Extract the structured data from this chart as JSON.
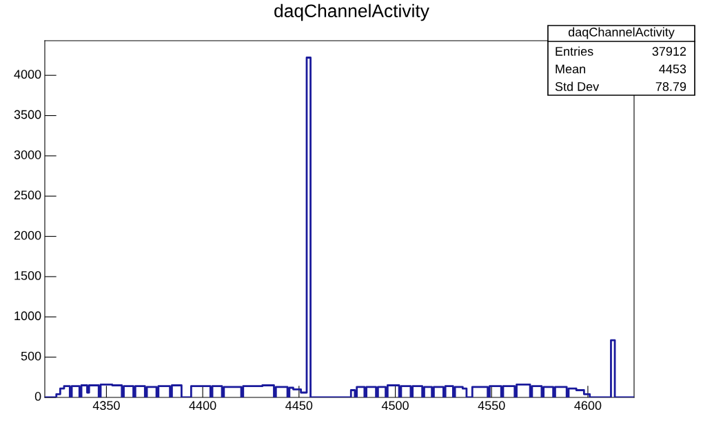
{
  "chart_data": {
    "type": "histogram",
    "title": "daqChannelActivity",
    "bins": [
      4318,
      4324,
      4326,
      4328,
      4331,
      4332,
      4336,
      4337,
      4340,
      4341,
      4346,
      4347,
      4353,
      4358,
      4359,
      4364,
      4365,
      4370,
      4371,
      4376,
      4377,
      4383,
      4384,
      4389,
      4394,
      4404,
      4405,
      4410,
      4411,
      4420,
      4421,
      4428,
      4431,
      4437,
      4438,
      4444,
      4445,
      4447,
      4451,
      4454,
      4456,
      4477,
      4479,
      4480,
      4484,
      4485,
      4490,
      4491,
      4495,
      4496,
      4502,
      4503,
      4508,
      4509,
      4514,
      4515,
      4519,
      4520,
      4525,
      4526,
      4530,
      4531,
      4535,
      4537,
      4540,
      4548,
      4549,
      4555,
      4556,
      4562,
      4563,
      4570,
      4571,
      4576,
      4577,
      4582,
      4583,
      4589,
      4590,
      4594,
      4598,
      4601,
      4612,
      4614,
      4624
    ],
    "values": [
      0,
      40,
      110,
      140,
      0,
      140,
      0,
      150,
      60,
      150,
      0,
      160,
      150,
      0,
      140,
      0,
      140,
      0,
      130,
      0,
      140,
      0,
      150,
      0,
      140,
      0,
      140,
      0,
      130,
      0,
      140,
      140,
      150,
      0,
      130,
      0,
      120,
      100,
      60,
      4220,
      0,
      90,
      0,
      130,
      0,
      130,
      0,
      130,
      0,
      150,
      0,
      140,
      0,
      140,
      0,
      130,
      0,
      130,
      0,
      140,
      0,
      130,
      110,
      0,
      130,
      0,
      140,
      0,
      140,
      0,
      160,
      0,
      140,
      0,
      130,
      0,
      130,
      0,
      110,
      90,
      40,
      0,
      710,
      0
    ],
    "color": "#1a1a9c",
    "xlim": [
      4318,
      4624
    ],
    "xticks": [
      4350,
      4400,
      4450,
      4500,
      4550,
      4600
    ],
    "ylim": [
      0,
      4430
    ],
    "yticks": [
      0,
      500,
      1000,
      1500,
      2000,
      2500,
      3000,
      3500,
      4000
    ],
    "grid": false,
    "annotations": [
      "daqChannelActivity",
      "Entries",
      "37912",
      "Mean",
      "4453",
      "Std Dev",
      "78.79"
    ]
  }
}
